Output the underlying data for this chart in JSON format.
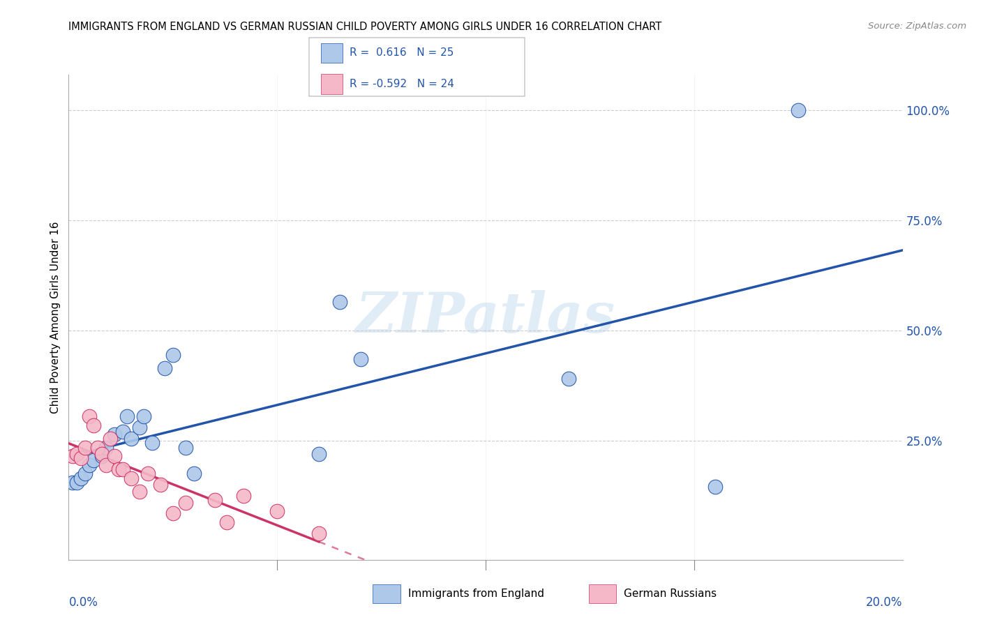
{
  "title": "IMMIGRANTS FROM ENGLAND VS GERMAN RUSSIAN CHILD POVERTY AMONG GIRLS UNDER 16 CORRELATION CHART",
  "source": "Source: ZipAtlas.com",
  "ylabel": "Child Poverty Among Girls Under 16",
  "xlim": [
    0.0,
    0.2
  ],
  "ylim": [
    -0.02,
    1.08
  ],
  "r_england": 0.616,
  "n_england": 25,
  "r_german": -0.592,
  "n_german": 24,
  "color_england": "#adc8e8",
  "color_german": "#f5b8c8",
  "line_color_england": "#2255aa",
  "line_color_german": "#cc3366",
  "legend_label_england": "Immigrants from England",
  "legend_label_german": "German Russians",
  "england_x": [
    0.001,
    0.002,
    0.003,
    0.004,
    0.005,
    0.006,
    0.008,
    0.009,
    0.011,
    0.013,
    0.014,
    0.015,
    0.017,
    0.018,
    0.02,
    0.023,
    0.025,
    0.028,
    0.03,
    0.06,
    0.065,
    0.07,
    0.12,
    0.155,
    0.175
  ],
  "england_y": [
    0.155,
    0.155,
    0.165,
    0.175,
    0.195,
    0.205,
    0.215,
    0.235,
    0.265,
    0.27,
    0.305,
    0.255,
    0.28,
    0.305,
    0.245,
    0.415,
    0.445,
    0.235,
    0.175,
    0.22,
    0.565,
    0.435,
    0.39,
    0.145,
    1.0
  ],
  "german_x": [
    0.001,
    0.002,
    0.003,
    0.004,
    0.005,
    0.006,
    0.007,
    0.008,
    0.009,
    0.01,
    0.011,
    0.012,
    0.013,
    0.015,
    0.017,
    0.019,
    0.022,
    0.025,
    0.028,
    0.035,
    0.038,
    0.042,
    0.05,
    0.06
  ],
  "german_y": [
    0.215,
    0.22,
    0.21,
    0.235,
    0.305,
    0.285,
    0.235,
    0.22,
    0.195,
    0.255,
    0.215,
    0.185,
    0.185,
    0.165,
    0.135,
    0.175,
    0.15,
    0.085,
    0.11,
    0.115,
    0.065,
    0.125,
    0.09,
    0.04
  ],
  "ytick_vals": [
    0.25,
    0.5,
    0.75,
    1.0
  ],
  "ytick_labels": [
    "25.0%",
    "50.0%",
    "75.0%",
    "100.0%"
  ],
  "xtick_vals": [
    0.05,
    0.1,
    0.15
  ],
  "grid_color": "#cccccc",
  "watermark": "ZIPatlas"
}
